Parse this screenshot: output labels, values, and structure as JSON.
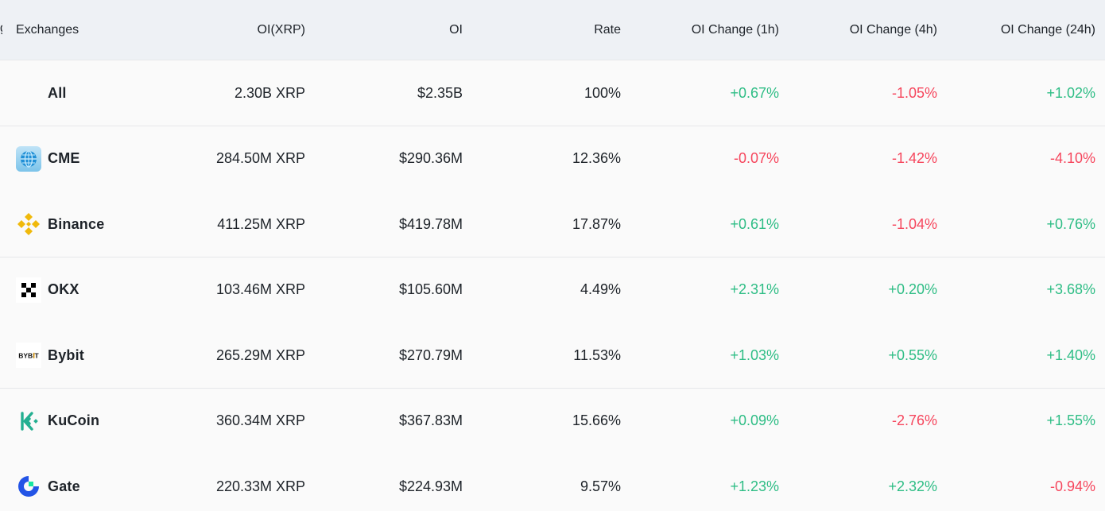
{
  "header": {
    "exchanges": "Exchanges",
    "oi_xrp": "OI(XRP)",
    "oi": "OI",
    "rate": "Rate",
    "oi_change_1h": "OI Change (1h)",
    "oi_change_4h": "OI Change (4h)",
    "oi_change_24h": "OI Change (24h)"
  },
  "colors": {
    "positive": "#2ebd85",
    "negative": "#f6465d",
    "header_bg": "#eef1f5",
    "row_bg": "#fafafa",
    "text": "#1e2329"
  },
  "rows": [
    {
      "name": "All",
      "icon": "none",
      "oi_xrp": "2.30B XRP",
      "oi": "$2.35B",
      "rate": "100%",
      "c1h": "+0.67%",
      "c4h": "-1.05%",
      "c24h": "+1.02%"
    },
    {
      "name": "CME",
      "icon": "cme-globe-icon",
      "oi_xrp": "284.50M XRP",
      "oi": "$290.36M",
      "rate": "12.36%",
      "c1h": "-0.07%",
      "c4h": "-1.42%",
      "c24h": "-4.10%"
    },
    {
      "name": "Binance",
      "icon": "binance-icon",
      "oi_xrp": "411.25M XRP",
      "oi": "$419.78M",
      "rate": "17.87%",
      "c1h": "+0.61%",
      "c4h": "-1.04%",
      "c24h": "+0.76%"
    },
    {
      "name": "OKX",
      "icon": "okx-icon",
      "oi_xrp": "103.46M XRP",
      "oi": "$105.60M",
      "rate": "4.49%",
      "c1h": "+2.31%",
      "c4h": "+0.20%",
      "c24h": "+3.68%"
    },
    {
      "name": "Bybit",
      "icon": "bybit-icon",
      "logo_text": "BYBIT",
      "oi_xrp": "265.29M XRP",
      "oi": "$270.79M",
      "rate": "11.53%",
      "c1h": "+1.03%",
      "c4h": "+0.55%",
      "c24h": "+1.40%"
    },
    {
      "name": "KuCoin",
      "icon": "kucoin-icon",
      "oi_xrp": "360.34M XRP",
      "oi": "$367.83M",
      "rate": "15.66%",
      "c1h": "+0.09%",
      "c4h": "-2.76%",
      "c24h": "+1.55%"
    },
    {
      "name": "Gate",
      "icon": "gate-icon",
      "oi_xrp": "220.33M XRP",
      "oi": "$224.93M",
      "rate": "9.57%",
      "c1h": "+1.23%",
      "c4h": "+2.32%",
      "c24h": "-0.94%"
    }
  ]
}
